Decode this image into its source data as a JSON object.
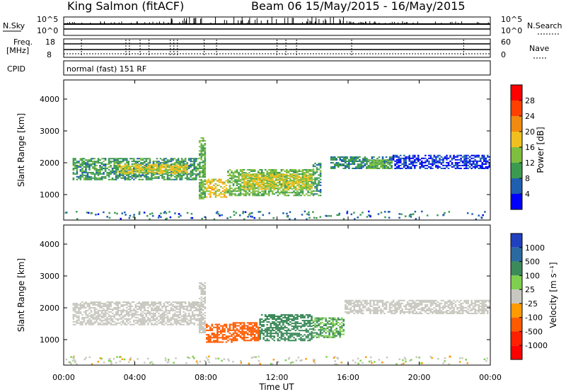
{
  "header": {
    "station": "King Salmon (fitACF)",
    "beam_date": "Beam 06  15/May/2015 - 16/May/2015"
  },
  "params": {
    "nsky_label": "N.Sky",
    "nsearch_label": "N.Search",
    "left_top_tick_top": "10^5",
    "left_top_tick_bot": "10^0",
    "right_top_tick_top": "10^5",
    "right_top_tick_bot": "10^0",
    "freq_label": "Freq.",
    "freq_unit": "[MHz]",
    "freq_tick_top": "18",
    "freq_tick_bot": "8",
    "nave_label": "Nave",
    "nave_tick_top": "60",
    "nave_tick_bot": "0",
    "cpid_label": "CPID",
    "cpid_value": "normal (fast) 151 RF"
  },
  "colors": {
    "power": [
      "#0000ff",
      "#1f5fb0",
      "#3c9a50",
      "#7fbf3f",
      "#f0c020",
      "#f08a10",
      "#ff4000",
      "#ff0000"
    ],
    "velocity": [
      "#2040c0",
      "#2a6aa0",
      "#3c8a5a",
      "#7fcf4f",
      "#c8c8c0",
      "#ff9a00",
      "#ff5a00",
      "#ff2000",
      "#ff0000"
    ]
  },
  "chart_data": [
    {
      "type": "heatmap",
      "panel": "power",
      "ylabel": "Slant Range [km]",
      "yticks": [
        "1000",
        "2000",
        "3000",
        "4000"
      ],
      "ylim": [
        200,
        4600
      ],
      "xlim": [
        0,
        24
      ],
      "colorbar_label": "Power [dB]",
      "colorbar_ticks": [
        "4",
        "8",
        "12",
        "16",
        "20",
        "24",
        "28"
      ],
      "colorbar_range": [
        0,
        32
      ],
      "bands": [
        {
          "x": [
            0.5,
            7.6
          ],
          "y": [
            1450,
            2150
          ],
          "value": 10
        },
        {
          "x": [
            3.0,
            7.0
          ],
          "y": [
            1650,
            1950
          ],
          "value": 17
        },
        {
          "x": [
            7.6,
            8.0
          ],
          "y": [
            850,
            2800
          ],
          "value": 12
        },
        {
          "x": [
            8.0,
            9.2
          ],
          "y": [
            900,
            1500
          ],
          "value": 18
        },
        {
          "x": [
            9.2,
            14.0
          ],
          "y": [
            950,
            1800
          ],
          "value": 13
        },
        {
          "x": [
            10.0,
            14.0
          ],
          "y": [
            1150,
            1650
          ],
          "value": 17
        },
        {
          "x": [
            14.0,
            14.5
          ],
          "y": [
            950,
            2000
          ],
          "value": 10
        },
        {
          "x": [
            15.0,
            18.5
          ],
          "y": [
            1800,
            2200
          ],
          "value": 9
        },
        {
          "x": [
            17.0,
            18.5
          ],
          "y": [
            1800,
            2100
          ],
          "value": 13
        },
        {
          "x": [
            18.5,
            24.0
          ],
          "y": [
            1800,
            2250
          ],
          "value": 4
        }
      ]
    },
    {
      "type": "heatmap",
      "panel": "velocity",
      "ylabel": "Slant Range [km]",
      "xlabel": "Time UT",
      "yticks": [
        "1000",
        "2000",
        "3000",
        "4000"
      ],
      "ylim": [
        200,
        4600
      ],
      "xlim": [
        0,
        24
      ],
      "xticks": [
        "00:00",
        "04:00",
        "08:00",
        "12:00",
        "16:00",
        "20:00",
        "00:00"
      ],
      "colorbar_label": "Velocity [m s⁻¹]",
      "colorbar_ticks": [
        "1000",
        "500",
        "100",
        "25",
        "-25",
        "-100",
        "-500",
        "-1000"
      ],
      "bands": [
        {
          "x": [
            0.5,
            7.8
          ],
          "y": [
            1450,
            2200
          ],
          "value": 0
        },
        {
          "x": [
            7.6,
            8.0
          ],
          "y": [
            1200,
            2800
          ],
          "value": 0
        },
        {
          "x": [
            8.0,
            9.5
          ],
          "y": [
            900,
            1500
          ],
          "value": -300
        },
        {
          "x": [
            9.5,
            11.0
          ],
          "y": [
            950,
            1550
          ],
          "value": -150
        },
        {
          "x": [
            11.0,
            14.0
          ],
          "y": [
            950,
            1800
          ],
          "value": 120
        },
        {
          "x": [
            14.0,
            15.8
          ],
          "y": [
            1050,
            1700
          ],
          "value": 60
        },
        {
          "x": [
            15.8,
            24.0
          ],
          "y": [
            1800,
            2250
          ],
          "value": 0
        }
      ]
    }
  ],
  "axes": {
    "time_ticks": [
      "00:00",
      "04:00",
      "08:00",
      "12:00",
      "16:00",
      "20:00",
      "00:00"
    ],
    "xlabel": "Time UT"
  }
}
